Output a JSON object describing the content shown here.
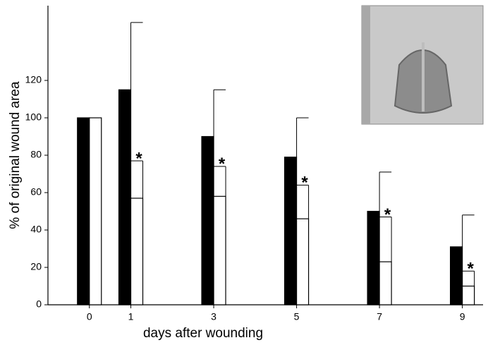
{
  "chart_data": {
    "type": "bar",
    "x_label": "days after wounding",
    "y_label": "% of original wound area",
    "x": [
      0,
      1,
      3,
      5,
      7,
      9
    ],
    "series": [
      {
        "color": "#000000",
        "values": [
          100,
          115,
          90,
          79,
          50,
          31
        ],
        "errors": [
          0,
          36,
          25,
          21,
          21,
          17
        ]
      },
      {
        "color": "#ffffff",
        "values": [
          100,
          57,
          58,
          46,
          23,
          10
        ],
        "errors": [
          0,
          20,
          16,
          18,
          24,
          8
        ]
      }
    ],
    "annotations": [
      {
        "x": 1,
        "text": "*"
      },
      {
        "x": 3,
        "text": "*"
      },
      {
        "x": 5,
        "text": "*"
      },
      {
        "x": 7,
        "text": "*"
      },
      {
        "x": 9,
        "text": "*"
      }
    ],
    "xlim": [
      -1,
      9.5
    ],
    "xticks": [
      0,
      1,
      3,
      5,
      7,
      9
    ],
    "ylim": [
      0,
      160
    ],
    "yticks": [
      0,
      20,
      40,
      60,
      80,
      100,
      120
    ]
  }
}
